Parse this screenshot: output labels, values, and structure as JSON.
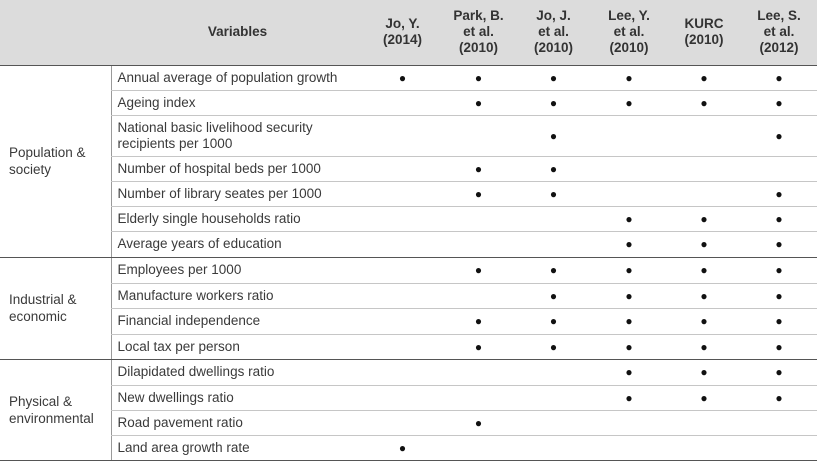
{
  "header": {
    "variables": "Variables",
    "studies": [
      "Jo, Y.\n(2014)",
      "Park, B.\net al.\n(2010)",
      "Jo, J.\net al.\n(2010)",
      "Lee, Y.\net al.\n(2010)",
      "KURC\n(2010)",
      "Lee, S.\net al.\n(2012)"
    ]
  },
  "mark_symbol": "●",
  "groups": [
    {
      "label": "Population &\nsociety",
      "rows": [
        {
          "variable": "Annual average of population growth",
          "marks": [
            true,
            true,
            true,
            true,
            true,
            true
          ]
        },
        {
          "variable": "Ageing index",
          "marks": [
            false,
            true,
            true,
            true,
            true,
            true
          ]
        },
        {
          "variable": "National basic livelihood security recipients per 1000",
          "marks": [
            false,
            false,
            true,
            false,
            false,
            true
          ]
        },
        {
          "variable": "Number of hospital beds per 1000",
          "marks": [
            false,
            true,
            true,
            false,
            false,
            false
          ]
        },
        {
          "variable": "Number of library seates per 1000",
          "marks": [
            false,
            true,
            true,
            false,
            false,
            true
          ]
        },
        {
          "variable": "Elderly single households ratio",
          "marks": [
            false,
            false,
            false,
            true,
            true,
            true
          ]
        },
        {
          "variable": "Average years of education",
          "marks": [
            false,
            false,
            false,
            true,
            true,
            true
          ]
        }
      ]
    },
    {
      "label": "Industrial &\neconomic",
      "rows": [
        {
          "variable": "Employees per 1000",
          "marks": [
            false,
            true,
            true,
            true,
            true,
            true
          ]
        },
        {
          "variable": "Manufacture workers ratio",
          "marks": [
            false,
            false,
            true,
            true,
            true,
            true
          ]
        },
        {
          "variable": "Financial independence",
          "marks": [
            false,
            true,
            true,
            true,
            true,
            true
          ]
        },
        {
          "variable": "Local tax per person",
          "marks": [
            false,
            true,
            true,
            true,
            true,
            true
          ]
        }
      ]
    },
    {
      "label": "Physical &\nenvironmental",
      "rows": [
        {
          "variable": "Dilapidated dwellings ratio",
          "marks": [
            false,
            false,
            false,
            true,
            true,
            true
          ]
        },
        {
          "variable": "New dwellings ratio",
          "marks": [
            false,
            false,
            false,
            true,
            true,
            true
          ]
        },
        {
          "variable": "Road pavement ratio",
          "marks": [
            false,
            true,
            false,
            false,
            false,
            false
          ]
        },
        {
          "variable": "Land area growth rate",
          "marks": [
            true,
            false,
            false,
            false,
            false,
            false
          ]
        }
      ]
    }
  ]
}
